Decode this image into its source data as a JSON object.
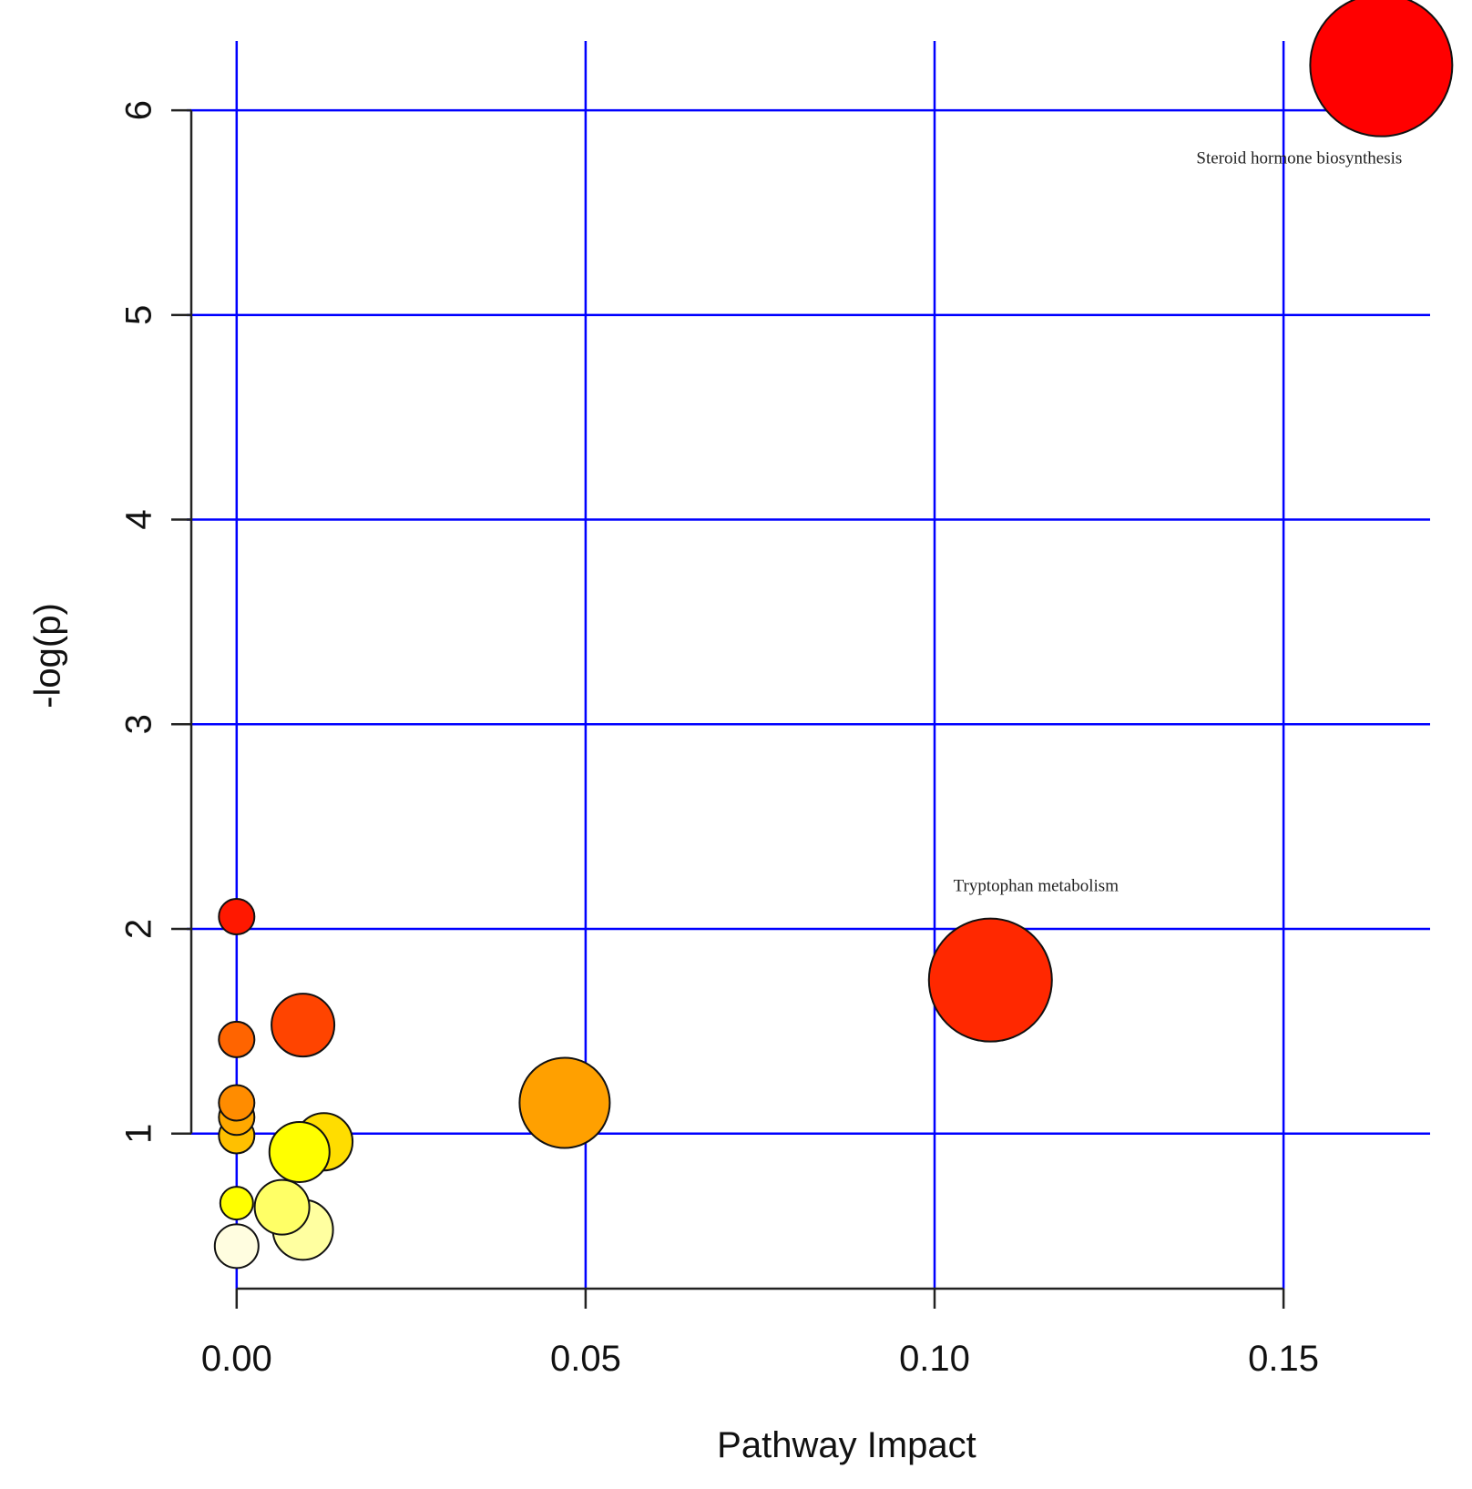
{
  "chart_data": {
    "type": "scatter",
    "xlabel": "Pathway Impact",
    "ylabel": "-log(p)",
    "xlim": [
      -0.0065,
      0.171
    ],
    "ylim": [
      0.22,
      6.45
    ],
    "xticks": [
      {
        "value": 0.0,
        "label": "0.00"
      },
      {
        "value": 0.05,
        "label": "0.05"
      },
      {
        "value": 0.1,
        "label": "0.10"
      },
      {
        "value": 0.15,
        "label": "0.15"
      }
    ],
    "yticks": [
      {
        "value": 1,
        "label": "1"
      },
      {
        "value": 2,
        "label": "2"
      },
      {
        "value": 3,
        "label": "3"
      },
      {
        "value": 4,
        "label": "4"
      },
      {
        "value": 5,
        "label": "5"
      },
      {
        "value": 6,
        "label": "6"
      }
    ],
    "grid": true,
    "grid_color": "#0000ff",
    "points": [
      {
        "x": 0.0,
        "y": 0.45,
        "size": 1.6,
        "color": "#fffde0"
      },
      {
        "x": 0.0095,
        "y": 0.53,
        "size": 2.2,
        "color": "#ffffa0"
      },
      {
        "x": 0.0065,
        "y": 0.64,
        "size": 2.0,
        "color": "#ffff66"
      },
      {
        "x": 0.0,
        "y": 0.66,
        "size": 1.2,
        "color": "#ffff00"
      },
      {
        "x": 0.0125,
        "y": 0.96,
        "size": 2.1,
        "color": "#ffdd00"
      },
      {
        "x": 0.009,
        "y": 0.91,
        "size": 2.2,
        "color": "#ffff00"
      },
      {
        "x": 0.0,
        "y": 0.99,
        "size": 1.3,
        "color": "#ffc000"
      },
      {
        "x": 0.0,
        "y": 1.08,
        "size": 1.3,
        "color": "#ffa800"
      },
      {
        "x": 0.0,
        "y": 1.15,
        "size": 1.3,
        "color": "#ff8c00"
      },
      {
        "x": 0.0,
        "y": 1.46,
        "size": 1.3,
        "color": "#ff6400"
      },
      {
        "x": 0.0095,
        "y": 1.53,
        "size": 2.3,
        "color": "#ff4400"
      },
      {
        "x": 0.0,
        "y": 2.06,
        "size": 1.3,
        "color": "#ff1800"
      },
      {
        "x": 0.047,
        "y": 1.15,
        "size": 3.3,
        "color": "#ffa000"
      },
      {
        "x": 0.108,
        "y": 1.75,
        "size": 4.5,
        "color": "#ff2800",
        "label": "Tryptophan metabolism"
      },
      {
        "x": 0.164,
        "y": 6.22,
        "size": 5.2,
        "color": "#ff0000",
        "label": "Steroid hormone biosynthesis"
      }
    ]
  }
}
